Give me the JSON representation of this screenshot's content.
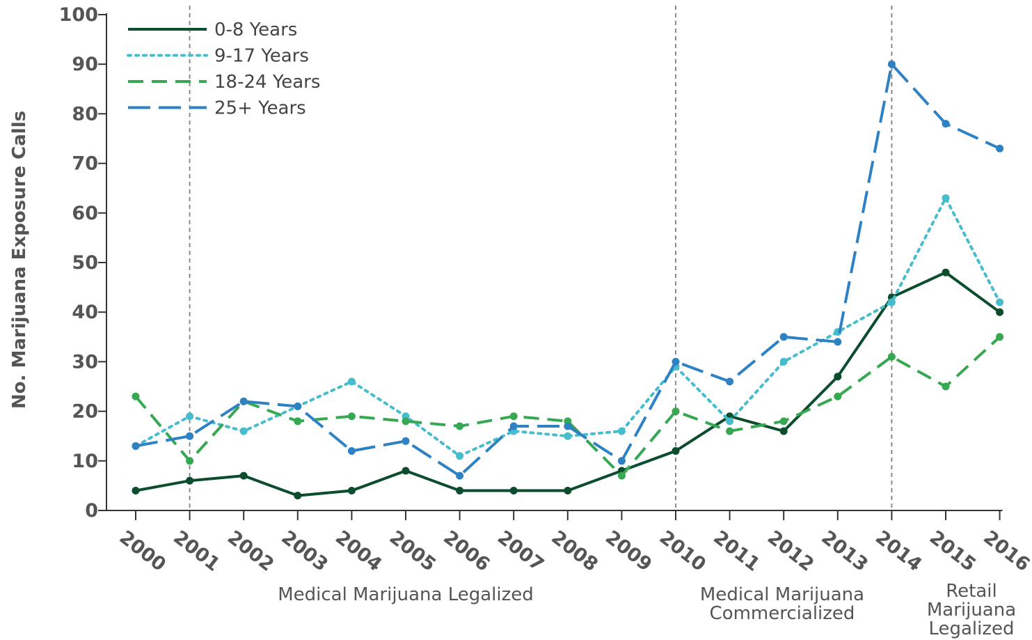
{
  "chart_data": {
    "type": "line",
    "title": "",
    "xlabel": "",
    "ylabel": "No. Marijuana Exposure Calls",
    "ylim": [
      0,
      100
    ],
    "yticks": [
      0,
      10,
      20,
      30,
      40,
      50,
      60,
      70,
      80,
      90,
      100
    ],
    "grid": false,
    "legend_position": "top-left",
    "x": [
      2000,
      2001,
      2002,
      2003,
      2004,
      2005,
      2006,
      2007,
      2008,
      2009,
      2010,
      2011,
      2012,
      2013,
      2014,
      2015,
      2016
    ],
    "x_tick_labels": [
      "2000",
      "2001",
      "2002",
      "2003",
      "2004",
      "2005",
      "2006",
      "2007",
      "2008",
      "2009",
      "2010",
      "2011",
      "2012",
      "2013",
      "2014",
      "2015",
      "2016"
    ],
    "series": [
      {
        "name": "0-8 Years",
        "color": "#0b4d2c",
        "line_style": "solid",
        "values": [
          4,
          6,
          7,
          3,
          4,
          8,
          4,
          4,
          4,
          8,
          12,
          19,
          16,
          27,
          43,
          48,
          40
        ]
      },
      {
        "name": "9-17 Years",
        "color": "#45bdcc",
        "line_style": "dotted",
        "values": [
          13,
          19,
          16,
          21,
          26,
          19,
          11,
          16,
          15,
          16,
          29,
          18,
          30,
          36,
          42,
          63,
          42
        ]
      },
      {
        "name": "18-24 Years",
        "color": "#37a852",
        "line_style": "dashed",
        "values": [
          23,
          10,
          22,
          18,
          19,
          18,
          17,
          19,
          18,
          7,
          20,
          16,
          18,
          23,
          31,
          25,
          35
        ]
      },
      {
        "name": "25+ Years",
        "color": "#2e82c4",
        "line_style": "long-dashed",
        "values": [
          13,
          15,
          22,
          21,
          12,
          14,
          7,
          17,
          17,
          10,
          30,
          26,
          35,
          34,
          90,
          78,
          73
        ]
      }
    ],
    "reference_lines": [
      {
        "x": 2001,
        "label": "Medical Marijuana Legalized",
        "label_lines": [
          "Medical Marijuana Legalized"
        ]
      },
      {
        "x": 2010,
        "label": "Medical Marijuana Commercialized",
        "label_lines": [
          "Medical Marijuana",
          "Commercialized"
        ]
      },
      {
        "x": 2014,
        "label": "Retail Marijuana Legalized",
        "label_lines": [
          "Retail",
          "Marijuana",
          "Legalized"
        ]
      }
    ]
  }
}
